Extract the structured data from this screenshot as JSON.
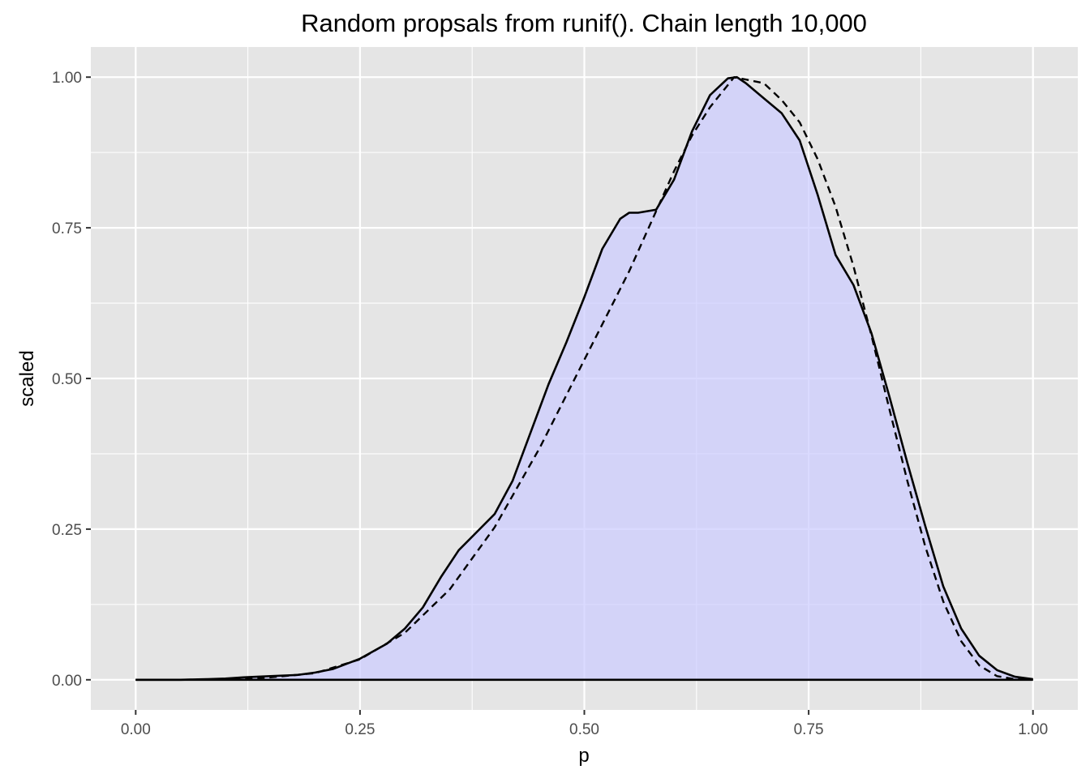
{
  "chart_data": {
    "type": "area",
    "title": "Random propsals from runif().  Chain length 10,000",
    "xlabel": "p",
    "ylabel": "scaled",
    "xlim": [
      -0.05,
      1.05
    ],
    "ylim": [
      -0.05,
      1.05
    ],
    "x_ticks": [
      {
        "value": 0.0,
        "label": "0.00"
      },
      {
        "value": 0.25,
        "label": "0.25"
      },
      {
        "value": 0.5,
        "label": "0.50"
      },
      {
        "value": 0.75,
        "label": "0.75"
      },
      {
        "value": 1.0,
        "label": "1.00"
      }
    ],
    "y_ticks": [
      {
        "value": 0.0,
        "label": "0.00"
      },
      {
        "value": 0.25,
        "label": "0.25"
      },
      {
        "value": 0.5,
        "label": "0.50"
      },
      {
        "value": 0.75,
        "label": "0.75"
      },
      {
        "value": 1.0,
        "label": "1.00"
      }
    ],
    "x_minor_gridlines": [
      0.125,
      0.375,
      0.625,
      0.875
    ],
    "y_minor_gridlines": [
      0.125,
      0.375,
      0.625,
      0.875
    ],
    "grid": true,
    "panel_background": "#e5e5e5",
    "gridline_color": "#ffffff",
    "fill_color": "#ccccff",
    "line_color": "#000000",
    "series": [
      {
        "style": "solid-filled",
        "x": [
          0.0,
          0.05,
          0.08,
          0.1,
          0.12,
          0.15,
          0.18,
          0.2,
          0.22,
          0.25,
          0.28,
          0.3,
          0.32,
          0.34,
          0.36,
          0.38,
          0.4,
          0.42,
          0.44,
          0.46,
          0.48,
          0.5,
          0.52,
          0.54,
          0.55,
          0.56,
          0.58,
          0.6,
          0.62,
          0.64,
          0.66,
          0.67,
          0.68,
          0.7,
          0.72,
          0.74,
          0.76,
          0.78,
          0.8,
          0.82,
          0.84,
          0.86,
          0.88,
          0.9,
          0.92,
          0.94,
          0.96,
          0.98,
          1.0
        ],
        "y": [
          0.0,
          0.0,
          0.001,
          0.002,
          0.004,
          0.006,
          0.008,
          0.012,
          0.018,
          0.035,
          0.06,
          0.085,
          0.12,
          0.17,
          0.215,
          0.245,
          0.275,
          0.33,
          0.41,
          0.49,
          0.56,
          0.635,
          0.715,
          0.765,
          0.775,
          0.775,
          0.78,
          0.83,
          0.91,
          0.97,
          0.998,
          1.0,
          0.99,
          0.965,
          0.94,
          0.895,
          0.805,
          0.705,
          0.655,
          0.575,
          0.47,
          0.36,
          0.255,
          0.155,
          0.085,
          0.04,
          0.016,
          0.005,
          0.001
        ]
      },
      {
        "style": "dashed",
        "x": [
          0.0,
          0.05,
          0.1,
          0.15,
          0.2,
          0.25,
          0.3,
          0.35,
          0.4,
          0.45,
          0.5,
          0.55,
          0.6,
          0.62,
          0.64,
          0.667,
          0.7,
          0.72,
          0.74,
          0.76,
          0.78,
          0.8,
          0.82,
          0.84,
          0.86,
          0.88,
          0.9,
          0.92,
          0.94,
          0.96,
          0.98,
          1.0
        ],
        "y": [
          0.0,
          0.0,
          0.001,
          0.004,
          0.011,
          0.034,
          0.078,
          0.15,
          0.253,
          0.384,
          0.531,
          0.678,
          0.844,
          0.903,
          0.95,
          1.0,
          0.99,
          0.962,
          0.925,
          0.864,
          0.785,
          0.686,
          0.571,
          0.449,
          0.33,
          0.221,
          0.13,
          0.064,
          0.024,
          0.006,
          0.001,
          0.0
        ]
      }
    ]
  }
}
